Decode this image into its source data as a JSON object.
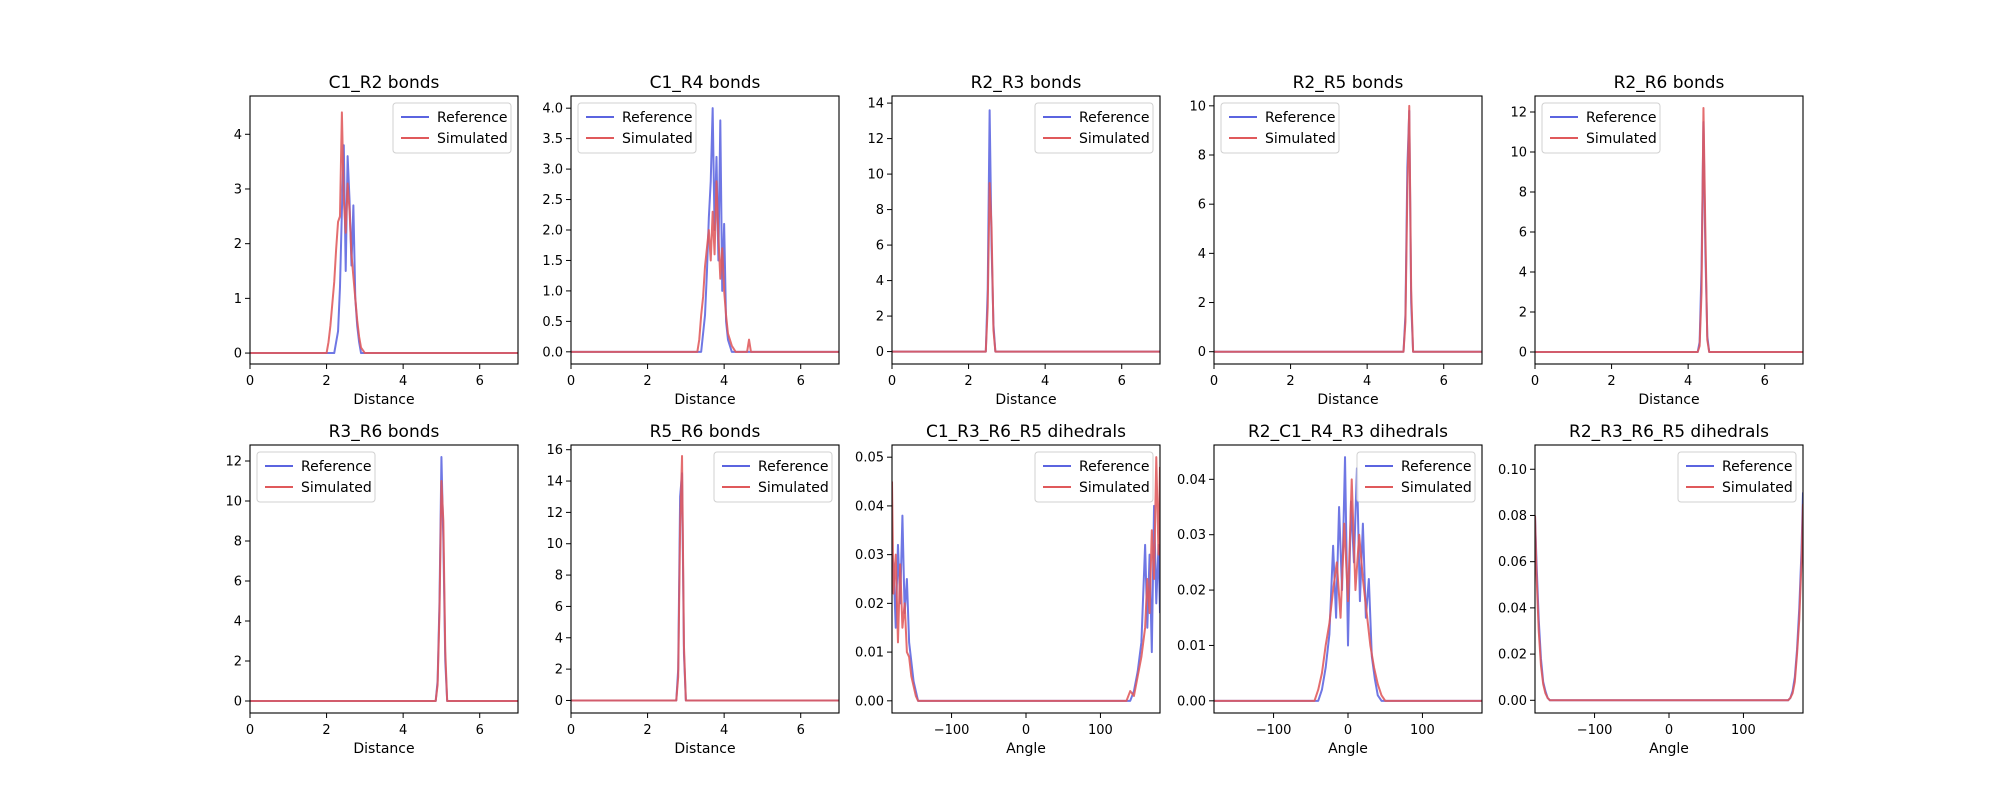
{
  "figure": {
    "colors": {
      "reference": "#5b64e0",
      "simulated": "#e0595b"
    }
  },
  "chart_data": [
    {
      "type": "line",
      "title": "C1_R2 bonds",
      "xlabel": "Distance",
      "ylabel": "",
      "xlim": [
        0,
        7
      ],
      "ylim": [
        -0.2,
        4.7
      ],
      "xticks": [
        0,
        2,
        4,
        6
      ],
      "yticks": [
        0,
        1,
        2,
        3,
        4
      ],
      "legend": {
        "position": "top-right",
        "labels": [
          "Reference",
          "Simulated"
        ]
      },
      "series": [
        {
          "name": "Reference",
          "x": [
            0,
            2.2,
            2.3,
            2.35,
            2.4,
            2.45,
            2.5,
            2.55,
            2.6,
            2.65,
            2.7,
            2.75,
            2.8,
            2.85,
            2.9,
            3.0,
            7
          ],
          "y": [
            0,
            0,
            0.4,
            1.2,
            2.6,
            3.8,
            1.5,
            3.6,
            2.8,
            1.6,
            2.7,
            1.0,
            0.5,
            0.2,
            0,
            0,
            0
          ]
        },
        {
          "name": "Simulated",
          "x": [
            0,
            2.0,
            2.05,
            2.1,
            2.15,
            2.2,
            2.25,
            2.3,
            2.35,
            2.4,
            2.45,
            2.5,
            2.55,
            2.6,
            2.65,
            2.7,
            2.75,
            2.8,
            2.85,
            2.9,
            2.95,
            3.0,
            7
          ],
          "y": [
            0,
            0,
            0.2,
            0.5,
            0.9,
            1.3,
            1.9,
            2.4,
            2.5,
            4.4,
            2.8,
            2.2,
            3.1,
            2.6,
            1.8,
            1.4,
            1.0,
            0.6,
            0.3,
            0.1,
            0.05,
            0,
            0
          ]
        }
      ]
    },
    {
      "type": "line",
      "title": "C1_R4 bonds",
      "xlabel": "Distance",
      "ylabel": "",
      "xlim": [
        0,
        7
      ],
      "ylim": [
        -0.2,
        4.2
      ],
      "xticks": [
        0,
        2,
        4,
        6
      ],
      "yticks": [
        0.0,
        0.5,
        1.0,
        1.5,
        2.0,
        2.5,
        3.0,
        3.5,
        4.0
      ],
      "ytick_labels": [
        "0.0",
        "0.5",
        "1.0",
        "1.5",
        "2.0",
        "2.5",
        "3.0",
        "3.5",
        "4.0"
      ],
      "legend": {
        "position": "top-left",
        "labels": [
          "Reference",
          "Simulated"
        ]
      },
      "series": [
        {
          "name": "Reference",
          "x": [
            0,
            3.4,
            3.5,
            3.55,
            3.6,
            3.65,
            3.7,
            3.75,
            3.8,
            3.85,
            3.9,
            3.95,
            4.0,
            4.05,
            4.1,
            4.2,
            7
          ],
          "y": [
            0,
            0,
            0.6,
            1.3,
            2.2,
            2.8,
            4.0,
            2.0,
            3.2,
            1.5,
            3.8,
            1.0,
            2.1,
            0.5,
            0.2,
            0,
            0
          ]
        },
        {
          "name": "Simulated",
          "x": [
            0,
            3.3,
            3.35,
            3.4,
            3.45,
            3.5,
            3.55,
            3.6,
            3.65,
            3.7,
            3.75,
            3.8,
            3.85,
            3.9,
            3.95,
            4.0,
            4.05,
            4.1,
            4.2,
            4.3,
            4.6,
            4.65,
            4.7,
            7
          ],
          "y": [
            0,
            0,
            0.2,
            0.6,
            0.9,
            1.4,
            1.7,
            2.0,
            1.5,
            2.3,
            1.6,
            2.8,
            1.9,
            1.2,
            1.7,
            1.0,
            0.6,
            0.3,
            0.1,
            0,
            0,
            0.2,
            0,
            0
          ]
        }
      ]
    },
    {
      "type": "line",
      "title": "R2_R3 bonds",
      "xlabel": "Distance",
      "ylabel": "",
      "xlim": [
        0,
        7
      ],
      "ylim": [
        -0.7,
        14.4
      ],
      "xticks": [
        0,
        2,
        4,
        6
      ],
      "yticks": [
        0,
        2,
        4,
        6,
        8,
        10,
        12,
        14
      ],
      "legend": {
        "position": "top-right",
        "labels": [
          "Reference",
          "Simulated"
        ]
      },
      "series": [
        {
          "name": "Reference",
          "x": [
            0,
            2.45,
            2.5,
            2.55,
            2.6,
            2.65,
            2.7,
            7
          ],
          "y": [
            0,
            0,
            3.5,
            13.6,
            6.0,
            1.5,
            0,
            0
          ]
        },
        {
          "name": "Simulated",
          "x": [
            0,
            2.45,
            2.5,
            2.55,
            2.6,
            2.65,
            2.7,
            7
          ],
          "y": [
            0,
            0,
            2.5,
            9.5,
            7.0,
            1.2,
            0,
            0
          ]
        }
      ]
    },
    {
      "type": "line",
      "title": "R2_R5 bonds",
      "xlabel": "Distance",
      "ylabel": "",
      "xlim": [
        0,
        7
      ],
      "ylim": [
        -0.5,
        10.4
      ],
      "xticks": [
        0,
        2,
        4,
        6
      ],
      "yticks": [
        0,
        2,
        4,
        6,
        8,
        10
      ],
      "legend": {
        "position": "top-left",
        "labels": [
          "Reference",
          "Simulated"
        ]
      },
      "series": [
        {
          "name": "Reference",
          "x": [
            0,
            4.95,
            5.0,
            5.05,
            5.1,
            5.15,
            5.2,
            7
          ],
          "y": [
            0,
            0,
            1.5,
            7.5,
            9.8,
            2.0,
            0,
            0
          ]
        },
        {
          "name": "Simulated",
          "x": [
            0,
            4.95,
            5.0,
            5.05,
            5.1,
            5.15,
            5.2,
            7
          ],
          "y": [
            0,
            0,
            1.2,
            6.5,
            10.0,
            2.5,
            0,
            0
          ]
        }
      ]
    },
    {
      "type": "line",
      "title": "R2_R6 bonds",
      "xlabel": "Distance",
      "ylabel": "",
      "xlim": [
        0,
        7
      ],
      "ylim": [
        -0.6,
        12.8
      ],
      "xticks": [
        0,
        2,
        4,
        6
      ],
      "yticks": [
        0,
        2,
        4,
        6,
        8,
        10,
        12
      ],
      "legend": {
        "position": "top-left",
        "labels": [
          "Reference",
          "Simulated"
        ]
      },
      "series": [
        {
          "name": "Reference",
          "x": [
            0,
            4.25,
            4.3,
            4.35,
            4.4,
            4.45,
            4.5,
            4.55,
            7
          ],
          "y": [
            0,
            0,
            0.5,
            4.2,
            11.5,
            5.0,
            0.8,
            0,
            0
          ]
        },
        {
          "name": "Simulated",
          "x": [
            0,
            4.25,
            4.3,
            4.35,
            4.4,
            4.45,
            4.5,
            4.55,
            7
          ],
          "y": [
            0,
            0,
            0.3,
            3.0,
            12.2,
            6.0,
            0.6,
            0,
            0
          ]
        }
      ]
    },
    {
      "type": "line",
      "title": "R3_R6 bonds",
      "xlabel": "Distance",
      "ylabel": "",
      "xlim": [
        0,
        7
      ],
      "ylim": [
        -0.6,
        12.8
      ],
      "xticks": [
        0,
        2,
        4,
        6
      ],
      "yticks": [
        0,
        2,
        4,
        6,
        8,
        10,
        12
      ],
      "legend": {
        "position": "top-left",
        "labels": [
          "Reference",
          "Simulated"
        ]
      },
      "series": [
        {
          "name": "Reference",
          "x": [
            0,
            4.85,
            4.9,
            4.95,
            5.0,
            5.05,
            5.1,
            5.15,
            7
          ],
          "y": [
            0,
            0,
            1.0,
            5.0,
            12.2,
            8.0,
            2.0,
            0,
            0
          ]
        },
        {
          "name": "Simulated",
          "x": [
            0,
            4.85,
            4.9,
            4.95,
            5.0,
            5.05,
            5.1,
            5.15,
            7
          ],
          "y": [
            0,
            0,
            0.8,
            4.5,
            11.0,
            9.0,
            2.5,
            0,
            0
          ]
        }
      ]
    },
    {
      "type": "line",
      "title": "R5_R6 bonds",
      "xlabel": "Distance",
      "ylabel": "",
      "xlim": [
        0,
        7
      ],
      "ylim": [
        -0.8,
        16.3
      ],
      "xticks": [
        0,
        2,
        4,
        6
      ],
      "yticks": [
        0,
        2,
        4,
        6,
        8,
        10,
        12,
        14,
        16
      ],
      "legend": {
        "position": "top-right",
        "labels": [
          "Reference",
          "Simulated"
        ]
      },
      "series": [
        {
          "name": "Reference",
          "x": [
            0,
            2.75,
            2.8,
            2.85,
            2.9,
            2.95,
            3.0,
            7
          ],
          "y": [
            0,
            0,
            2.0,
            13.0,
            14.5,
            3.0,
            0,
            0
          ]
        },
        {
          "name": "Simulated",
          "x": [
            0,
            2.75,
            2.8,
            2.85,
            2.9,
            2.95,
            3.0,
            7
          ],
          "y": [
            0,
            0,
            1.5,
            11.0,
            15.6,
            3.5,
            0,
            0
          ]
        }
      ]
    },
    {
      "type": "line",
      "title": "C1_R3_R6_R5 dihedrals",
      "xlabel": "Angle",
      "ylabel": "",
      "xlim": [
        -180,
        180
      ],
      "ylim": [
        -0.0025,
        0.0525
      ],
      "xticks": [
        -100,
        0,
        100
      ],
      "yticks": [
        0.0,
        0.01,
        0.02,
        0.03,
        0.04,
        0.05
      ],
      "ytick_labels": [
        "0.00",
        "0.01",
        "0.02",
        "0.03",
        "0.04",
        "0.05"
      ],
      "legend": {
        "position": "top-right",
        "labels": [
          "Reference",
          "Simulated"
        ]
      },
      "series": [
        {
          "name": "Reference",
          "x": [
            -180,
            -178,
            -175,
            -172,
            -169,
            -166,
            -163,
            -160,
            -157,
            -154,
            -151,
            -148,
            -145,
            -140,
            -135,
            135,
            140,
            145,
            150,
            155,
            160,
            163,
            166,
            169,
            172,
            175,
            178,
            180
          ],
          "y": [
            0.03,
            0.028,
            0.015,
            0.032,
            0.02,
            0.038,
            0.018,
            0.025,
            0.012,
            0.008,
            0.004,
            0.002,
            0.0,
            0.0,
            0.0,
            0.0,
            0.0,
            0.002,
            0.006,
            0.012,
            0.032,
            0.015,
            0.03,
            0.01,
            0.04,
            0.02,
            0.032,
            0.018
          ]
        },
        {
          "name": "Simulated",
          "x": [
            -180,
            -178,
            -175,
            -172,
            -169,
            -166,
            -163,
            -160,
            -157,
            -154,
            -151,
            -148,
            -145,
            -140,
            -135,
            135,
            140,
            145,
            150,
            155,
            160,
            163,
            166,
            169,
            172,
            175,
            178,
            180
          ],
          "y": [
            0.045,
            0.022,
            0.03,
            0.012,
            0.028,
            0.015,
            0.02,
            0.01,
            0.009,
            0.005,
            0.003,
            0.001,
            0.0,
            0.0,
            0.0,
            0.0,
            0.002,
            0.001,
            0.005,
            0.009,
            0.015,
            0.025,
            0.018,
            0.035,
            0.025,
            0.05,
            0.03,
            0.048
          ]
        }
      ]
    },
    {
      "type": "line",
      "title": "R2_C1_R4_R3 dihedrals",
      "xlabel": "Angle",
      "ylabel": "",
      "xlim": [
        -180,
        180
      ],
      "ylim": [
        -0.0022,
        0.0462
      ],
      "xticks": [
        -100,
        0,
        100
      ],
      "yticks": [
        0.0,
        0.01,
        0.02,
        0.03,
        0.04
      ],
      "ytick_labels": [
        "0.00",
        "0.01",
        "0.02",
        "0.03",
        "0.04"
      ],
      "legend": {
        "position": "top-right",
        "labels": [
          "Reference",
          "Simulated"
        ]
      },
      "series": [
        {
          "name": "Reference",
          "x": [
            -180,
            -40,
            -35,
            -30,
            -25,
            -20,
            -16,
            -12,
            -8,
            -4,
            0,
            4,
            8,
            12,
            16,
            20,
            24,
            28,
            32,
            36,
            40,
            45,
            180
          ],
          "y": [
            0,
            0,
            0.002,
            0.006,
            0.012,
            0.028,
            0.015,
            0.035,
            0.02,
            0.044,
            0.01,
            0.036,
            0.025,
            0.042,
            0.018,
            0.032,
            0.015,
            0.022,
            0.008,
            0.004,
            0.001,
            0,
            0
          ]
        },
        {
          "name": "Simulated",
          "x": [
            -180,
            -45,
            -40,
            -35,
            -30,
            -25,
            -20,
            -15,
            -10,
            -5,
            0,
            5,
            10,
            15,
            20,
            25,
            30,
            35,
            40,
            45,
            50,
            180
          ],
          "y": [
            0,
            0,
            0.002,
            0.005,
            0.01,
            0.014,
            0.02,
            0.025,
            0.015,
            0.032,
            0.018,
            0.04,
            0.02,
            0.03,
            0.022,
            0.016,
            0.01,
            0.006,
            0.003,
            0.001,
            0,
            0
          ]
        }
      ]
    },
    {
      "type": "line",
      "title": "R2_R3_R6_R5 dihedrals",
      "xlabel": "Angle",
      "ylabel": "",
      "xlim": [
        -180,
        180
      ],
      "ylim": [
        -0.0055,
        0.1105
      ],
      "xticks": [
        -100,
        0,
        100
      ],
      "yticks": [
        0.0,
        0.02,
        0.04,
        0.06,
        0.08,
        0.1
      ],
      "ytick_labels": [
        "0.00",
        "0.02",
        "0.04",
        "0.06",
        "0.08",
        "0.10"
      ],
      "legend": {
        "position": "top-right",
        "labels": [
          "Reference",
          "Simulated"
        ]
      },
      "series": [
        {
          "name": "Reference",
          "x": [
            -180,
            -178,
            -175,
            -172,
            -169,
            -166,
            -163,
            -160,
            -155,
            155,
            160,
            163,
            166,
            169,
            172,
            175,
            178,
            180
          ],
          "y": [
            0.08,
            0.06,
            0.035,
            0.018,
            0.008,
            0.004,
            0.001,
            0.0,
            0.0,
            0.0,
            0.0,
            0.001,
            0.004,
            0.01,
            0.022,
            0.04,
            0.065,
            0.09
          ]
        },
        {
          "name": "Simulated",
          "x": [
            -180,
            -178,
            -175,
            -172,
            -169,
            -166,
            -163,
            -160,
            -155,
            155,
            160,
            163,
            166,
            169,
            172,
            175,
            178,
            180
          ],
          "y": [
            0.08,
            0.055,
            0.03,
            0.015,
            0.007,
            0.003,
            0.001,
            0.0,
            0.0,
            0.0,
            0.0,
            0.001,
            0.003,
            0.008,
            0.02,
            0.035,
            0.06,
            0.085
          ]
        }
      ]
    }
  ]
}
